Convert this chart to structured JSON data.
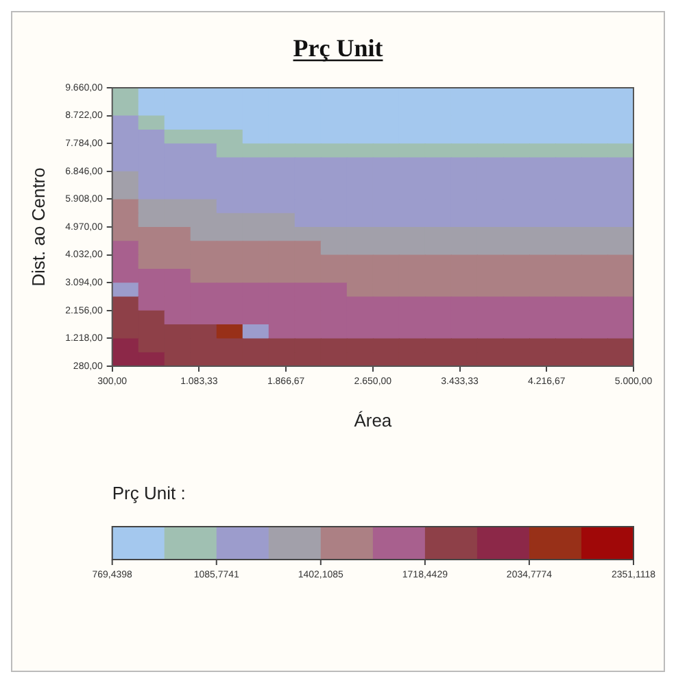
{
  "chart_data": {
    "type": "heatmap",
    "title": "Prç Unit",
    "xlabel": "Área",
    "ylabel": "Dist. ao Centro",
    "clabel": "Prç Unit :",
    "x": [
      417.5,
      652.5,
      887.5,
      1122.5,
      1357.5,
      1592.5,
      1827.5,
      2062.5,
      2297.5,
      2532.5,
      2767.5,
      3002.5,
      3237.5,
      3472.5,
      3707.5,
      3942.5,
      4177.5,
      4412.5,
      4647.5,
      4882.5
    ],
    "xlim": [
      300,
      5000
    ],
    "xticks": [
      {
        "value": 300,
        "label": "300,00"
      },
      {
        "value": 1083.33,
        "label": "1.083,33"
      },
      {
        "value": 1866.67,
        "label": "1.866,67"
      },
      {
        "value": 2650,
        "label": "2.650,00"
      },
      {
        "value": 3433.33,
        "label": "3.433,33"
      },
      {
        "value": 4216.67,
        "label": "4.216,67"
      },
      {
        "value": 5000,
        "label": "5.000,00"
      }
    ],
    "ylim": [
      280,
      9660
    ],
    "yticks": [
      {
        "value": 280,
        "label": "280,00"
      },
      {
        "value": 1218,
        "label": "1.218,00"
      },
      {
        "value": 2156,
        "label": "2.156,00"
      },
      {
        "value": 3094,
        "label": "3.094,00"
      },
      {
        "value": 4032,
        "label": "4.032,00"
      },
      {
        "value": 4970,
        "label": "4.970,00"
      },
      {
        "value": 5908,
        "label": "5.908,00"
      },
      {
        "value": 6846,
        "label": "6.846,00"
      },
      {
        "value": 7784,
        "label": "7.784,00"
      },
      {
        "value": 8722,
        "label": "8.722,00"
      },
      {
        "value": 9660,
        "label": "9.660,00"
      }
    ],
    "clim": [
      769.4398,
      2351.1118
    ],
    "cticks": [
      {
        "value": 769.4398,
        "label": "769,4398"
      },
      {
        "value": 1085.7741,
        "label": "1085,7741"
      },
      {
        "value": 1402.1085,
        "label": "1402,1085"
      },
      {
        "value": 1718.4429,
        "label": "1718,4429"
      },
      {
        "value": 2034.7774,
        "label": "2034,7774"
      },
      {
        "value": 2351.1118,
        "label": "2351,1118"
      }
    ],
    "colors": [
      "#a4c8ee",
      "#a0c0b2",
      "#9c9ccc",
      "#a2a0aa",
      "#ac8084",
      "#a8608e",
      "#8e4048",
      "#8c2848",
      "#983018",
      "#a00808"
    ],
    "cells": [
      [
        1007,
        849,
        849,
        849,
        849,
        849,
        849,
        849,
        849,
        849,
        849,
        849,
        849,
        849,
        849,
        849,
        849,
        849,
        849,
        849
      ],
      [
        1007,
        849,
        849,
        849,
        849,
        849,
        849,
        849,
        849,
        849,
        849,
        849,
        849,
        849,
        849,
        849,
        849,
        849,
        849,
        849
      ],
      [
        1165,
        1007,
        849,
        849,
        849,
        849,
        849,
        849,
        849,
        849,
        849,
        849,
        849,
        849,
        849,
        849,
        849,
        849,
        849,
        849
      ],
      [
        1165,
        1165,
        1007,
        1007,
        1007,
        849,
        849,
        849,
        849,
        849,
        849,
        849,
        849,
        849,
        849,
        849,
        849,
        849,
        849,
        849
      ],
      [
        1165,
        1165,
        1165,
        1165,
        1007,
        1007,
        1007,
        1007,
        1007,
        1007,
        1007,
        1007,
        1007,
        1007,
        1007,
        1007,
        1007,
        1007,
        1007,
        1007
      ],
      [
        1165,
        1165,
        1165,
        1165,
        1165,
        1165,
        1165,
        1165,
        1165,
        1165,
        1165,
        1165,
        1165,
        1165,
        1165,
        1165,
        1165,
        1165,
        1165,
        1165
      ],
      [
        1323,
        1165,
        1165,
        1165,
        1165,
        1165,
        1165,
        1165,
        1165,
        1165,
        1165,
        1165,
        1165,
        1165,
        1165,
        1165,
        1165,
        1165,
        1165,
        1165
      ],
      [
        1323,
        1165,
        1165,
        1165,
        1165,
        1165,
        1165,
        1165,
        1165,
        1165,
        1165,
        1165,
        1165,
        1165,
        1165,
        1165,
        1165,
        1165,
        1165,
        1165
      ],
      [
        1481,
        1323,
        1323,
        1323,
        1165,
        1165,
        1165,
        1165,
        1165,
        1165,
        1165,
        1165,
        1165,
        1165,
        1165,
        1165,
        1165,
        1165,
        1165,
        1165
      ],
      [
        1481,
        1323,
        1323,
        1323,
        1323,
        1323,
        1323,
        1165,
        1165,
        1165,
        1165,
        1165,
        1165,
        1165,
        1165,
        1165,
        1165,
        1165,
        1165,
        1165
      ],
      [
        1481,
        1481,
        1481,
        1323,
        1323,
        1323,
        1323,
        1323,
        1323,
        1323,
        1323,
        1323,
        1323,
        1323,
        1323,
        1323,
        1323,
        1323,
        1323,
        1323
      ],
      [
        1639,
        1481,
        1481,
        1481,
        1481,
        1481,
        1481,
        1481,
        1323,
        1323,
        1323,
        1323,
        1323,
        1323,
        1323,
        1323,
        1323,
        1323,
        1323,
        1323
      ],
      [
        1639,
        1481,
        1481,
        1481,
        1481,
        1481,
        1481,
        1481,
        1481,
        1481,
        1481,
        1481,
        1481,
        1481,
        1481,
        1481,
        1481,
        1481,
        1481,
        1481
      ],
      [
        1639,
        1639,
        1639,
        1481,
        1481,
        1481,
        1481,
        1481,
        1481,
        1481,
        1481,
        1481,
        1481,
        1481,
        1481,
        1481,
        1481,
        1481,
        1481,
        1481
      ],
      [
        1165,
        1639,
        1639,
        1639,
        1639,
        1639,
        1639,
        1639,
        1639,
        1481,
        1481,
        1481,
        1481,
        1481,
        1481,
        1481,
        1481,
        1481,
        1481,
        1481
      ],
      [
        1798,
        1639,
        1639,
        1639,
        1639,
        1639,
        1639,
        1639,
        1639,
        1639,
        1639,
        1639,
        1639,
        1639,
        1639,
        1639,
        1639,
        1639,
        1639,
        1639
      ],
      [
        1798,
        1798,
        1639,
        1639,
        1639,
        1639,
        1639,
        1639,
        1639,
        1639,
        1639,
        1639,
        1639,
        1639,
        1639,
        1639,
        1639,
        1639,
        1639,
        1639
      ],
      [
        1798,
        1798,
        1798,
        1798,
        2114,
        1165,
        1639,
        1639,
        1639,
        1639,
        1639,
        1639,
        1639,
        1639,
        1639,
        1639,
        1639,
        1639,
        1639,
        1639
      ],
      [
        1956,
        1798,
        1798,
        1798,
        1798,
        1798,
        1798,
        1798,
        1798,
        1798,
        1798,
        1798,
        1798,
        1798,
        1798,
        1798,
        1798,
        1798,
        1798,
        1798
      ],
      [
        1956,
        1956,
        1798,
        1798,
        1798,
        1798,
        1798,
        1798,
        1798,
        1798,
        1798,
        1798,
        1798,
        1798,
        1798,
        1798,
        1798,
        1798,
        1798,
        1798
      ]
    ]
  }
}
